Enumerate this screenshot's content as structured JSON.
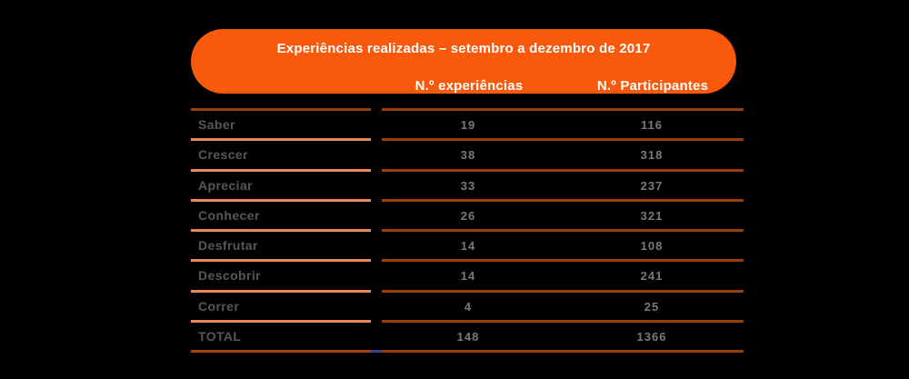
{
  "chart_data": {
    "type": "table",
    "title": "Experiências realizadas – setembro a dezembro de 2017",
    "columns": [
      "",
      "N.º experiências",
      "N.º Participantes"
    ],
    "rows": [
      {
        "label": "Saber",
        "experiencias": "19",
        "participantes": "116"
      },
      {
        "label": "Crescer",
        "experiencias": "38",
        "participantes": "318"
      },
      {
        "label": "Apreciar",
        "experiencias": "33",
        "participantes": "237"
      },
      {
        "label": "Conhecer",
        "experiencias": "26",
        "participantes": "321"
      },
      {
        "label": "Desfrutar",
        "experiencias": "14",
        "participantes": "108"
      },
      {
        "label": "Descobrir",
        "experiencias": "14",
        "participantes": "241"
      },
      {
        "label": "Correr",
        "experiencias": "4",
        "participantes": "25"
      },
      {
        "label": "TOTAL",
        "experiencias": "148",
        "participantes": "1366"
      }
    ]
  },
  "colors": {
    "header_orange": "#F8590B",
    "separator_salmon": "#EE855B",
    "separator_dark": "#9C3D0C",
    "bottom_left_dark": "#A8430F",
    "accent_blue_tick": "#3F3F8F",
    "label_text": "#54575B",
    "value_text": "#77797D",
    "header_text": "#FFFFFF",
    "background": "#000000"
  }
}
